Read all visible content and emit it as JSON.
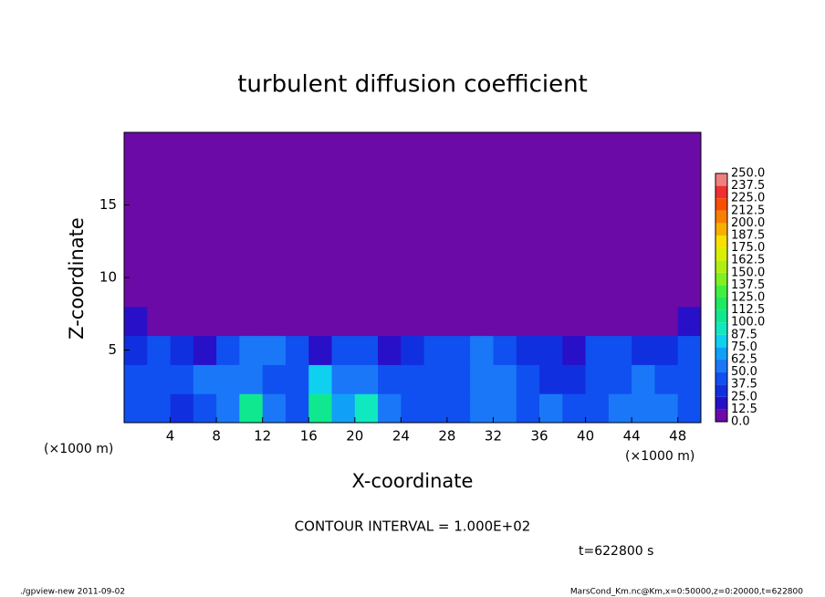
{
  "chart_data": {
    "type": "heatmap",
    "title": "turbulent diffusion coefficient",
    "x_label": "X-coordinate",
    "y_label": "Z-coordinate",
    "x_unit": "(×1000 m)",
    "note": "CONTOUR INTERVAL = 1.000E+02",
    "time_label": "t=622800 s",
    "footer_left": "./gpview-new   2011-09-02",
    "footer_right": "MarsCond_Km.nc@Km,x=0:50000,z=0:20000,t=622800",
    "xlim": [
      0,
      50
    ],
    "xticks": [
      4,
      8,
      12,
      16,
      20,
      24,
      28,
      32,
      36,
      40,
      44,
      48
    ],
    "ylim": [
      0,
      20
    ],
    "yticks": [
      5,
      10,
      15
    ],
    "x": [
      1,
      3,
      5,
      7,
      9,
      11,
      13,
      15,
      17,
      19,
      21,
      23,
      25,
      27,
      29,
      31,
      33,
      35,
      37,
      39,
      41,
      43,
      45,
      47,
      49
    ],
    "y": [
      1,
      3,
      5,
      7,
      9,
      11,
      13,
      15,
      17,
      19
    ],
    "z": [
      [
        45,
        40,
        35,
        45,
        60,
        110,
        50,
        45,
        100,
        70,
        95,
        60,
        45,
        40,
        40,
        55,
        60,
        45,
        50,
        40,
        45,
        55,
        60,
        50,
        45
      ],
      [
        40,
        45,
        40,
        50,
        55,
        60,
        45,
        40,
        80,
        50,
        55,
        45,
        45,
        40,
        40,
        50,
        55,
        40,
        35,
        35,
        40,
        45,
        55,
        45,
        40
      ],
      [
        30,
        40,
        30,
        15,
        45,
        50,
        50,
        45,
        15,
        45,
        40,
        20,
        35,
        45,
        45,
        50,
        40,
        25,
        30,
        20,
        40,
        40,
        35,
        35,
        40
      ],
      [
        20,
        0,
        0,
        0,
        0,
        0,
        0,
        0,
        0,
        0,
        0,
        0,
        0,
        0,
        0,
        0,
        0,
        0,
        0,
        0,
        0,
        0,
        0,
        0,
        20
      ],
      [
        0,
        0,
        0,
        0,
        0,
        0,
        0,
        0,
        0,
        0,
        0,
        0,
        0,
        0,
        0,
        0,
        0,
        0,
        0,
        0,
        0,
        0,
        0,
        0,
        0
      ],
      [
        0,
        0,
        0,
        0,
        0,
        0,
        0,
        0,
        0,
        0,
        0,
        0,
        0,
        0,
        0,
        0,
        0,
        0,
        0,
        0,
        0,
        0,
        0,
        0,
        0
      ],
      [
        0,
        0,
        0,
        0,
        0,
        0,
        0,
        0,
        0,
        0,
        0,
        0,
        0,
        0,
        0,
        0,
        0,
        0,
        0,
        0,
        0,
        0,
        0,
        0,
        0
      ],
      [
        0,
        0,
        0,
        0,
        0,
        0,
        0,
        0,
        0,
        0,
        0,
        0,
        0,
        0,
        0,
        0,
        0,
        0,
        0,
        0,
        0,
        0,
        0,
        0,
        0
      ],
      [
        0,
        0,
        0,
        0,
        0,
        0,
        0,
        0,
        0,
        0,
        0,
        0,
        0,
        0,
        0,
        0,
        0,
        0,
        0,
        0,
        0,
        0,
        0,
        0,
        0
      ],
      [
        0,
        0,
        0,
        0,
        0,
        0,
        0,
        0,
        0,
        0,
        0,
        0,
        0,
        0,
        0,
        0,
        0,
        0,
        0,
        0,
        0,
        0,
        0,
        0,
        0
      ]
    ],
    "levels": [
      {
        "value": 0,
        "label": "0.0"
      },
      12.5,
      {
        "value": 25,
        "label": "25.0"
      },
      37.5,
      {
        "value": 50,
        "label": "50.0"
      },
      62.5,
      {
        "value": 75,
        "label": "75.0"
      },
      87.5,
      {
        "value": 100,
        "label": "100.0"
      },
      112.5,
      {
        "value": 125,
        "label": "125.0"
      },
      137.5,
      {
        "value": 150,
        "label": "150.0"
      },
      162.5,
      {
        "value": 175,
        "label": "175.0"
      },
      187.5,
      {
        "value": 200,
        "label": "200.0"
      },
      212.5,
      {
        "value": 225,
        "label": "225.0"
      },
      237.5,
      {
        "value": 250,
        "label": "250.0"
      }
    ],
    "colors": [
      "#6b0aa6",
      "#2810c8",
      "#1030e0",
      "#1050f0",
      "#1a78f8",
      "#10a0f8",
      "#10d0f0",
      "#10e8c0",
      "#10e890",
      "#20e860",
      "#40f040",
      "#80f020",
      "#b0f010",
      "#d8f000",
      "#f8e000",
      "#f8b000",
      "#f88000",
      "#f85000",
      "#f03030",
      "#f08080"
    ]
  }
}
